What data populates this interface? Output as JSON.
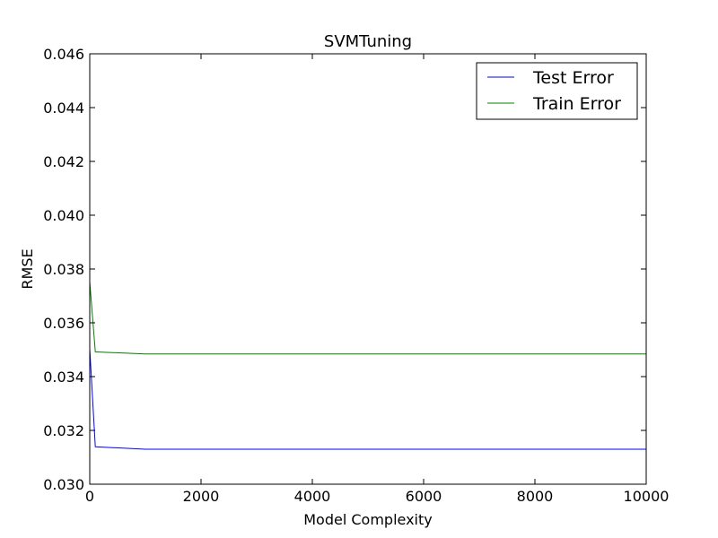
{
  "chart_data": {
    "type": "line",
    "title": "SVMTuning",
    "xlabel": "Model Complexity",
    "ylabel": "RMSE",
    "xlim": [
      0,
      10000
    ],
    "ylim": [
      0.03,
      0.046
    ],
    "xticks": [
      0,
      2000,
      4000,
      6000,
      8000,
      10000
    ],
    "xtick_labels": [
      "0",
      "2000",
      "4000",
      "6000",
      "8000",
      "10000"
    ],
    "yticks": [
      0.03,
      0.032,
      0.034,
      0.036,
      0.038,
      0.04,
      0.042,
      0.044,
      0.046
    ],
    "ytick_labels": [
      "0.030",
      "0.032",
      "0.034",
      "0.036",
      "0.038",
      "0.040",
      "0.042",
      "0.044",
      "0.046"
    ],
    "grid": false,
    "legend_position": "top-right",
    "series": [
      {
        "name": "Test Error",
        "color": "#0000ff",
        "x": [
          1,
          100,
          1000,
          10000
        ],
        "y": [
          0.035,
          0.03139,
          0.0313,
          0.0313
        ]
      },
      {
        "name": "Train Error",
        "color": "#008000",
        "x": [
          1,
          100,
          1000,
          10000
        ],
        "y": [
          0.0375,
          0.03492,
          0.03484,
          0.03484
        ]
      }
    ]
  }
}
